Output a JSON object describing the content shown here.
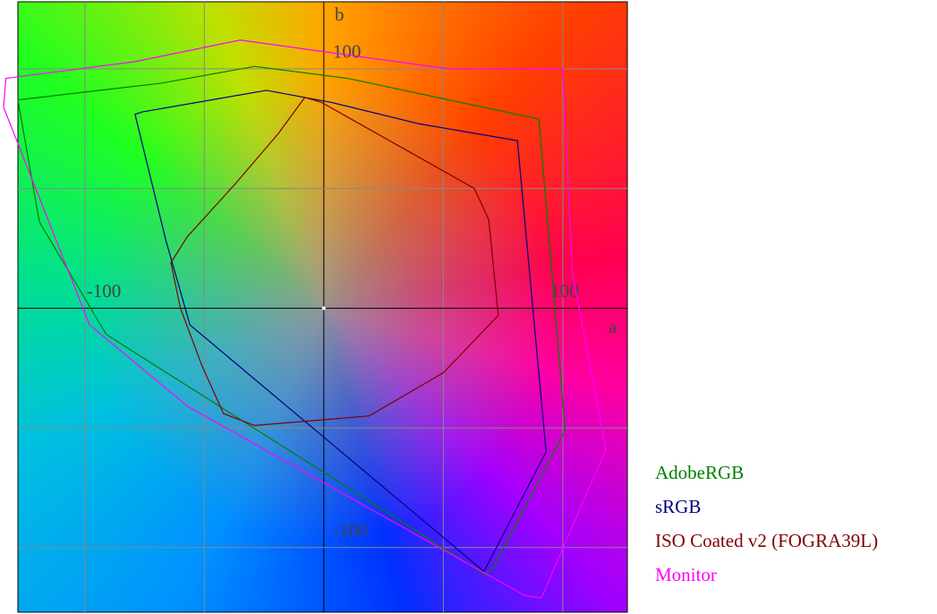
{
  "chart_data": {
    "type": "line",
    "xlabel": "a",
    "ylabel": "b",
    "xlim": [
      -128,
      127
    ],
    "ylim": [
      -127,
      128
    ],
    "xticks": [
      -100,
      100
    ],
    "yticks": [
      -100,
      100
    ],
    "xgrid": [
      -100,
      -50,
      0,
      50,
      100
    ],
    "ygrid": [
      -100,
      -50,
      0,
      50,
      100
    ],
    "grid": true,
    "closed": true,
    "legend": "lower right",
    "series": [
      {
        "name": "AdobeRGB",
        "color": "#008000",
        "x": [
          -128,
          -68,
          -29,
          10,
          90,
          101,
          70,
          67,
          -91,
          -119
        ],
        "values": [
          87,
          94,
          101,
          96,
          79,
          -51,
          -110,
          -111,
          -11,
          36
        ]
      },
      {
        "name": "sRGB",
        "color": "#000080",
        "x": [
          -79,
          -76,
          -24,
          3,
          40,
          81,
          93,
          67,
          -56,
          -66
        ],
        "values": [
          81,
          82,
          91,
          86,
          77,
          70,
          -60,
          -110,
          -7,
          28
        ]
      },
      {
        "name": "ISO Coated v2 (FOGRA39L)",
        "color": "#800000",
        "x": [
          -8,
          -1,
          63,
          69,
          73,
          50,
          19,
          -29,
          -42,
          -51,
          -60,
          -64,
          -57,
          -37,
          -19
        ],
        "values": [
          88,
          86,
          50,
          37,
          -3,
          -27,
          -45,
          -49,
          -44,
          -24,
          0,
          19,
          30,
          52,
          73
        ]
      },
      {
        "name": "Monitor",
        "color": "#ff00ff",
        "x": [
          -133,
          -79,
          -35,
          52,
          100,
          104,
          118,
          91,
          84,
          -57,
          -98,
          -134
        ],
        "values": [
          96,
          103,
          112,
          100,
          100,
          15,
          -59,
          -121,
          -120,
          -41,
          -7,
          84
        ]
      }
    ]
  }
}
